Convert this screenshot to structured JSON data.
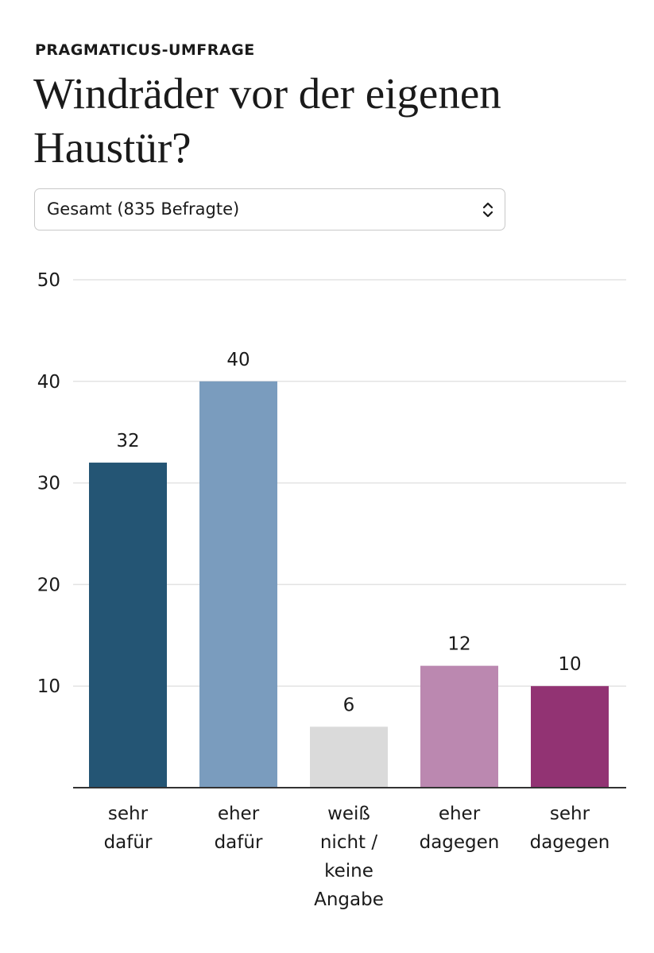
{
  "header": {
    "kicker": "PRAGMATICUS-UMFRAGE",
    "title": "Windräder vor der eigenen Haustür?"
  },
  "selector": {
    "value": "Gesamt (835 Befragte)",
    "icon": "chevron-up-down-icon"
  },
  "chart_data": {
    "type": "bar",
    "title": "Windräder vor der eigenen Haustür?",
    "xlabel": "",
    "ylabel": "",
    "ylim": [
      0,
      50
    ],
    "yticks": [
      10,
      20,
      30,
      40,
      50
    ],
    "grid": true,
    "legend": "none",
    "categories": [
      [
        "sehr",
        "dafür"
      ],
      [
        "eher",
        "dafür"
      ],
      [
        "weiß",
        "nicht /",
        "keine",
        "Angabe"
      ],
      [
        "eher",
        "dagegen"
      ],
      [
        "sehr",
        "dagegen"
      ]
    ],
    "values": [
      32,
      40,
      6,
      12,
      10
    ],
    "colors": [
      "#245574",
      "#7a9cbe",
      "#dadada",
      "#bb88b0",
      "#923373"
    ],
    "data_labels": [
      "32",
      "40",
      "6",
      "12",
      "10"
    ]
  }
}
